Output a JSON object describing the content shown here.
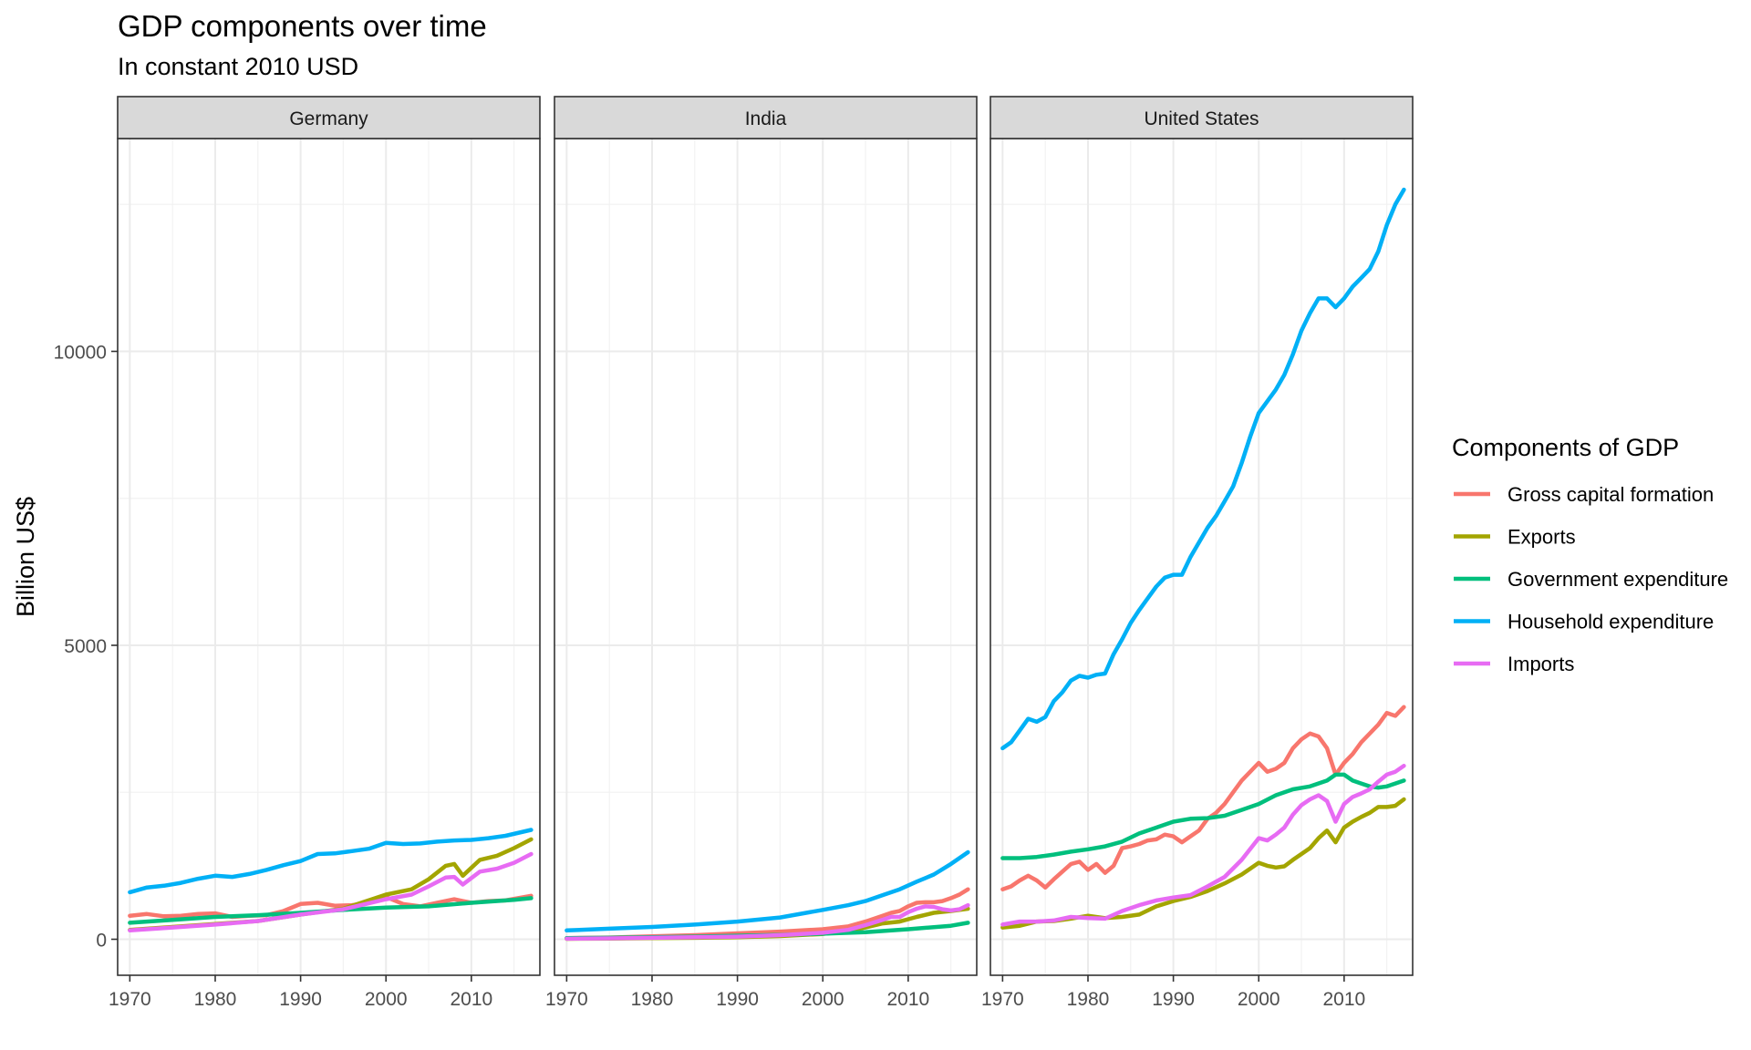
{
  "title": "GDP components over time",
  "subtitle": "In constant 2010 USD",
  "chart_data": {
    "type": "line",
    "title": "GDP components over time",
    "subtitle": "In constant 2010 USD",
    "xlabel": "",
    "ylabel": "Billion US$",
    "xlim": [
      1970,
      2017
    ],
    "ylim": [
      -600,
      13500
    ],
    "x_ticks": [
      1970,
      1980,
      1990,
      2000,
      2010
    ],
    "y_ticks": [
      0,
      5000,
      10000
    ],
    "grid": true,
    "legend": {
      "title": "Components of GDP",
      "position": "right",
      "entries": [
        "Gross capital formation",
        "Exports",
        "Government expenditure",
        "Household expenditure",
        "Imports"
      ]
    },
    "colors": {
      "Gross capital formation": "#F8766D",
      "Exports": "#A3A500",
      "Government expenditure": "#00BF7D",
      "Household expenditure": "#00B0F6",
      "Imports": "#E76BF3"
    },
    "facets": [
      {
        "name": "Germany",
        "series": [
          {
            "name": "Gross capital formation",
            "x": [
              1970,
              1972,
              1974,
              1976,
              1978,
              1980,
              1982,
              1984,
              1986,
              1988,
              1990,
              1992,
              1994,
              1996,
              1998,
              2000,
              2002,
              2004,
              2006,
              2008,
              2010,
              2012,
              2014,
              2017
            ],
            "y": [
              400,
              430,
              390,
              400,
              430,
              440,
              380,
              400,
              410,
              480,
              600,
              620,
              570,
              580,
              620,
              720,
              600,
              560,
              620,
              680,
              620,
              650,
              660,
              740
            ]
          },
          {
            "name": "Exports",
            "x": [
              1970,
              1975,
              1980,
              1985,
              1990,
              1995,
              2000,
              2003,
              2005,
              2007,
              2008,
              2009,
              2011,
              2013,
              2015,
              2017
            ],
            "y": [
              160,
              210,
              260,
              310,
              420,
              520,
              760,
              850,
              1020,
              1250,
              1280,
              1080,
              1350,
              1420,
              1550,
              1700
            ]
          },
          {
            "name": "Government expenditure",
            "x": [
              1970,
              1975,
              1980,
              1985,
              1990,
              1995,
              2000,
              2005,
              2010,
              2015,
              2017
            ],
            "y": [
              280,
              330,
              380,
              410,
              450,
              500,
              540,
              560,
              620,
              670,
              700
            ]
          },
          {
            "name": "Household expenditure",
            "x": [
              1970,
              1972,
              1974,
              1976,
              1978,
              1980,
              1982,
              1984,
              1986,
              1988,
              1990,
              1992,
              1994,
              1996,
              1998,
              2000,
              2002,
              2004,
              2006,
              2008,
              2010,
              2012,
              2014,
              2017
            ],
            "y": [
              800,
              880,
              910,
              960,
              1030,
              1080,
              1060,
              1110,
              1180,
              1260,
              1330,
              1450,
              1460,
              1500,
              1540,
              1640,
              1620,
              1630,
              1660,
              1680,
              1690,
              1720,
              1760,
              1860
            ]
          },
          {
            "name": "Imports",
            "x": [
              1970,
              1975,
              1980,
              1985,
              1990,
              1995,
              2000,
              2003,
              2005,
              2007,
              2008,
              2009,
              2011,
              2013,
              2015,
              2017
            ],
            "y": [
              150,
              200,
              250,
              310,
              420,
              510,
              680,
              760,
              900,
              1050,
              1060,
              930,
              1150,
              1200,
              1300,
              1450
            ]
          }
        ]
      },
      {
        "name": "India",
        "series": [
          {
            "name": "Gross capital formation",
            "x": [
              1970,
              1975,
              1980,
              1985,
              1990,
              1995,
              2000,
              2003,
              2005,
              2007,
              2008,
              2009,
              2010,
              2011,
              2012,
              2013,
              2014,
              2015,
              2016,
              2017
            ],
            "y": [
              20,
              30,
              50,
              70,
              100,
              130,
              170,
              220,
              300,
              400,
              450,
              480,
              560,
              620,
              630,
              630,
              650,
              700,
              760,
              850
            ]
          },
          {
            "name": "Exports",
            "x": [
              1970,
              1975,
              1980,
              1985,
              1990,
              1995,
              2000,
              2003,
              2005,
              2007,
              2009,
              2011,
              2013,
              2015,
              2017
            ],
            "y": [
              8,
              12,
              18,
              25,
              35,
              55,
              90,
              140,
              200,
              270,
              300,
              380,
              450,
              480,
              520
            ]
          },
          {
            "name": "Government expenditure",
            "x": [
              1970,
              1975,
              1980,
              1985,
              1990,
              1995,
              2000,
              2005,
              2010,
              2015,
              2017
            ],
            "y": [
              20,
              25,
              35,
              45,
              60,
              75,
              95,
              120,
              170,
              230,
              280
            ]
          },
          {
            "name": "Household expenditure",
            "x": [
              1970,
              1975,
              1980,
              1985,
              1990,
              1995,
              2000,
              2003,
              2005,
              2007,
              2009,
              2011,
              2013,
              2015,
              2017
            ],
            "y": [
              150,
              180,
              210,
              250,
              300,
              370,
              500,
              580,
              650,
              750,
              850,
              980,
              1100,
              1280,
              1480
            ]
          },
          {
            "name": "Imports",
            "x": [
              1970,
              1975,
              1980,
              1985,
              1990,
              1995,
              2000,
              2003,
              2005,
              2007,
              2008,
              2009,
              2010,
              2011,
              2012,
              2013,
              2014,
              2015,
              2016,
              2017
            ],
            "y": [
              10,
              15,
              25,
              35,
              45,
              70,
              110,
              160,
              240,
              330,
              380,
              380,
              460,
              520,
              560,
              550,
              510,
              490,
              510,
              580
            ]
          }
        ]
      },
      {
        "name": "United States",
        "series": [
          {
            "name": "Gross capital formation",
            "x": [
              1970,
              1971,
              1972,
              1973,
              1974,
              1975,
              1976,
              1977,
              1978,
              1979,
              1980,
              1981,
              1982,
              1983,
              1984,
              1985,
              1986,
              1987,
              1988,
              1989,
              1990,
              1991,
              1992,
              1993,
              1994,
              1995,
              1996,
              1997,
              1998,
              1999,
              2000,
              2001,
              2002,
              2003,
              2004,
              2005,
              2006,
              2007,
              2008,
              2009,
              2010,
              2011,
              2012,
              2013,
              2014,
              2015,
              2016,
              2017
            ],
            "y": [
              850,
              900,
              1000,
              1080,
              1000,
              880,
              1020,
              1150,
              1280,
              1320,
              1180,
              1280,
              1130,
              1250,
              1550,
              1580,
              1620,
              1680,
              1700,
              1780,
              1750,
              1650,
              1750,
              1850,
              2050,
              2150,
              2300,
              2500,
              2700,
              2850,
              3000,
              2850,
              2900,
              3000,
              3250,
              3400,
              3500,
              3450,
              3250,
              2800,
              3000,
              3150,
              3350,
              3500,
              3650,
              3850,
              3800,
              3950
            ]
          },
          {
            "name": "Exports",
            "x": [
              1970,
              1972,
              1974,
              1976,
              1978,
              1980,
              1982,
              1984,
              1986,
              1988,
              1990,
              1992,
              1994,
              1996,
              1998,
              2000,
              2001,
              2002,
              2003,
              2004,
              2005,
              2006,
              2007,
              2008,
              2009,
              2010,
              2011,
              2012,
              2013,
              2014,
              2015,
              2016,
              2017
            ],
            "y": [
              200,
              230,
              300,
              310,
              350,
              400,
              360,
              380,
              420,
              560,
              650,
              720,
              820,
              950,
              1100,
              1300,
              1250,
              1220,
              1240,
              1350,
              1450,
              1550,
              1720,
              1850,
              1650,
              1900,
              2000,
              2080,
              2150,
              2250,
              2250,
              2270,
              2380
            ]
          },
          {
            "name": "Government expenditure",
            "x": [
              1970,
              1972,
              1974,
              1976,
              1978,
              1980,
              1982,
              1984,
              1986,
              1988,
              1990,
              1992,
              1994,
              1996,
              1998,
              2000,
              2002,
              2004,
              2006,
              2008,
              2009,
              2010,
              2011,
              2012,
              2013,
              2014,
              2015,
              2016,
              2017
            ],
            "y": [
              1380,
              1380,
              1400,
              1440,
              1490,
              1530,
              1580,
              1660,
              1800,
              1900,
              2000,
              2050,
              2060,
              2100,
              2200,
              2300,
              2450,
              2550,
              2600,
              2700,
              2800,
              2800,
              2700,
              2650,
              2600,
              2580,
              2600,
              2650,
              2700
            ]
          },
          {
            "name": "Household expenditure",
            "x": [
              1970,
              1971,
              1972,
              1973,
              1974,
              1975,
              1976,
              1977,
              1978,
              1979,
              1980,
              1981,
              1982,
              1983,
              1984,
              1985,
              1986,
              1987,
              1988,
              1989,
              1990,
              1991,
              1992,
              1993,
              1994,
              1995,
              1996,
              1997,
              1998,
              1999,
              2000,
              2001,
              2002,
              2003,
              2004,
              2005,
              2006,
              2007,
              2008,
              2009,
              2010,
              2011,
              2012,
              2013,
              2014,
              2015,
              2016,
              2017
            ],
            "y": [
              3250,
              3350,
              3550,
              3750,
              3700,
              3780,
              4050,
              4200,
              4400,
              4480,
              4450,
              4500,
              4520,
              4850,
              5100,
              5380,
              5600,
              5800,
              6000,
              6150,
              6200,
              6200,
              6500,
              6750,
              7000,
              7200,
              7450,
              7700,
              8100,
              8550,
              8950,
              9150,
              9350,
              9600,
              9950,
              10350,
              10650,
              10900,
              10900,
              10750,
              10900,
              11100,
              11250,
              11400,
              11700,
              12150,
              12500,
              12750
            ]
          },
          {
            "name": "Imports",
            "x": [
              1970,
              1972,
              1974,
              1976,
              1978,
              1980,
              1982,
              1984,
              1986,
              1988,
              1990,
              1992,
              1994,
              1996,
              1998,
              2000,
              2001,
              2002,
              2003,
              2004,
              2005,
              2006,
              2007,
              2008,
              2009,
              2010,
              2011,
              2012,
              2013,
              2014,
              2015,
              2016,
              2017
            ],
            "y": [
              250,
              300,
              300,
              320,
              380,
              360,
              350,
              480,
              580,
              660,
              710,
              750,
              900,
              1060,
              1350,
              1720,
              1680,
              1780,
              1900,
              2120,
              2280,
              2380,
              2450,
              2350,
              2000,
              2300,
              2420,
              2480,
              2550,
              2680,
              2800,
              2850,
              2950
            ]
          }
        ]
      }
    ]
  }
}
